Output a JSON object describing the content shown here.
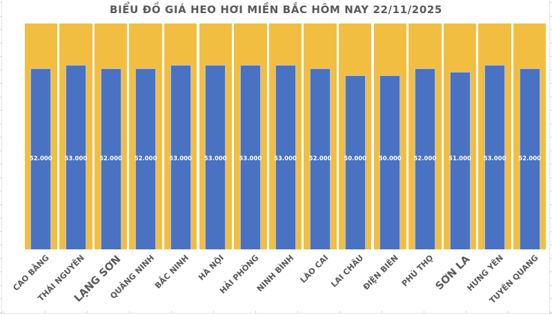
{
  "chart_data": {
    "type": "bar",
    "title": "BIỂU ĐỒ GIÁ HEO HƠI MIỀN BẮC HÔM NAY 22/11/2025",
    "categories": [
      "CAO BẰNG",
      "THÁI NGUYÊN",
      "LẠNG SƠN",
      "QUẢNG NINH",
      "BẮC NINH",
      "HÀ NỘI",
      "HẢI PHÒNG",
      "NINH BÌNH",
      "LÀO CAI",
      "LAI CHÂU",
      "ĐIỆN BIÊN",
      "PHÚ THỌ",
      "SƠN LA",
      "HƯNG YÊN",
      "TUYÊN QUANG"
    ],
    "values": [
      52000,
      53000,
      52000,
      52000,
      53000,
      53000,
      53000,
      53000,
      52000,
      50000,
      50000,
      52000,
      51000,
      53000,
      52000
    ],
    "value_labels": [
      "52.000",
      "53.000",
      "52.000",
      "52.000",
      "53.000",
      "53.000",
      "53.000",
      "53.000",
      "52.000",
      "50.000",
      "50.000",
      "52.000",
      "51.000",
      "53.000",
      "52.000"
    ],
    "xlabel": "",
    "ylabel": "",
    "ylim": [
      0,
      65000
    ],
    "grid": "off",
    "legend": "none",
    "emphasized_category_indices": [
      2,
      12
    ],
    "colors": {
      "bar": "#4A72C2",
      "background_bar": "#F2BE42",
      "category_gap": "#FFFFFF",
      "value_label_text": "#FFFFFF",
      "axis_label_text": "#595959",
      "title_text": "#595959",
      "sheet_gridline": "#E4E4E4"
    }
  }
}
